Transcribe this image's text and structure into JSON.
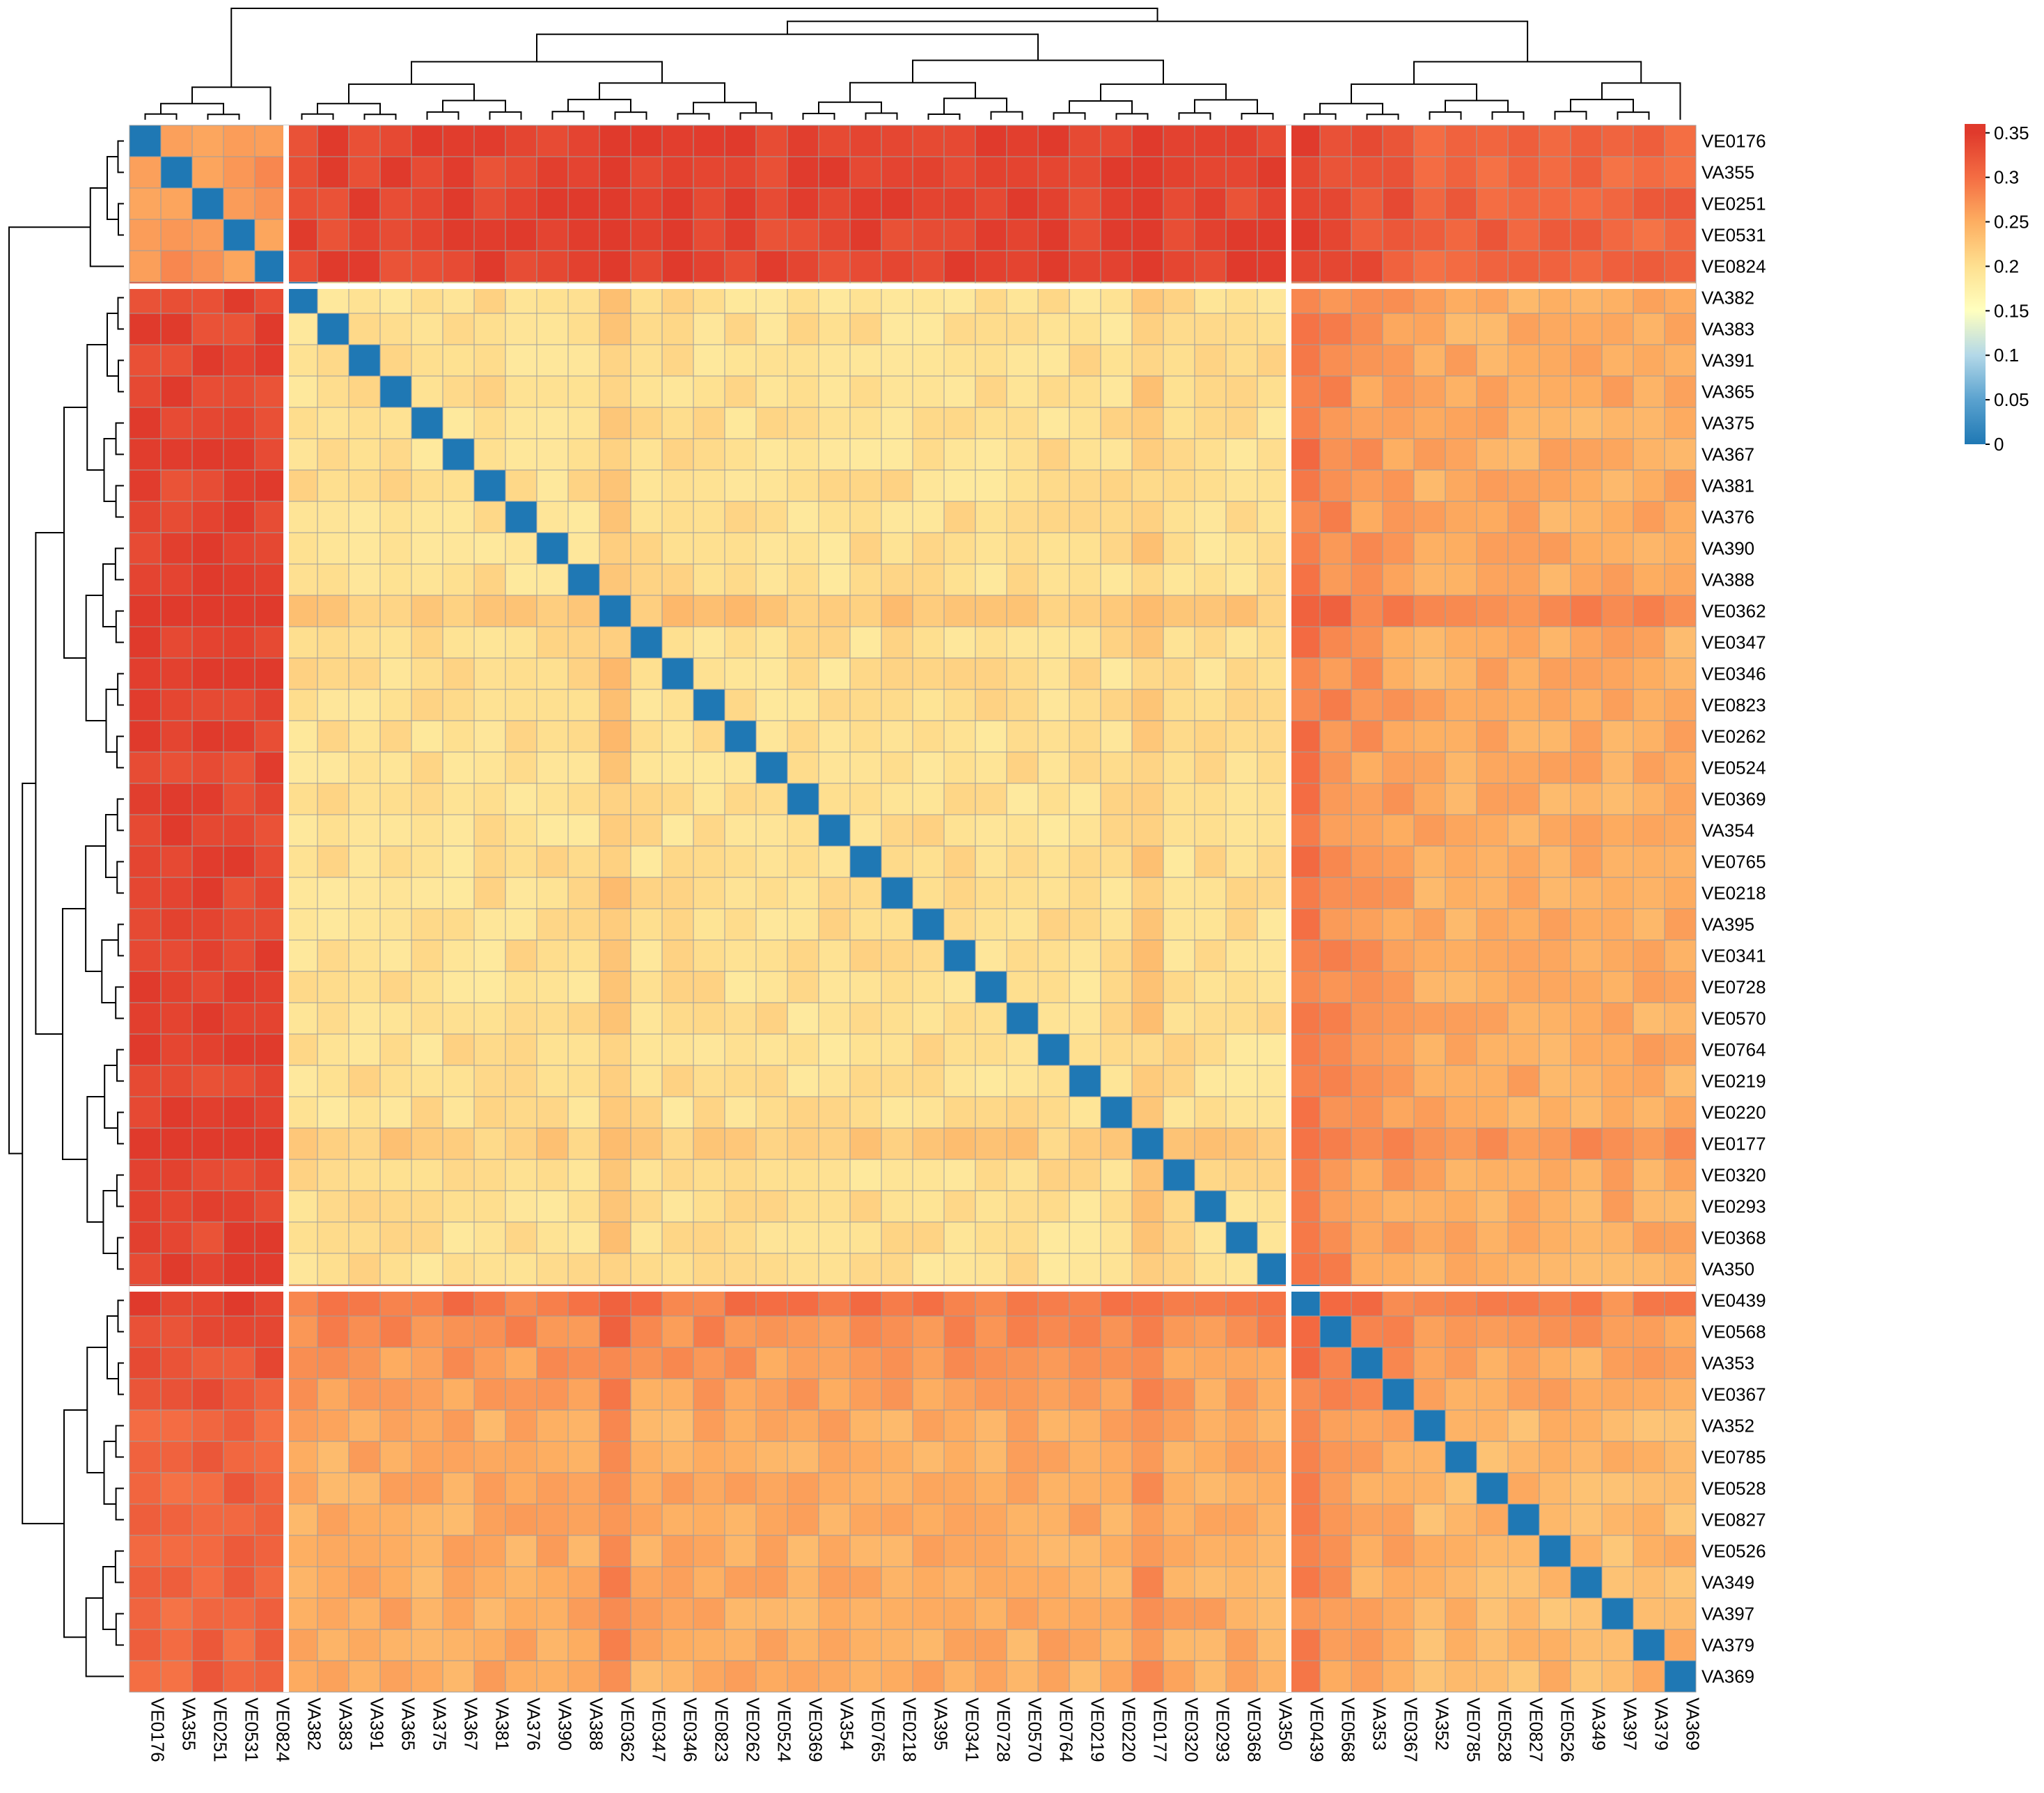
{
  "chart_data": {
    "type": "heatmap",
    "labels": [
      "VE0176",
      "VA355",
      "VE0251",
      "VE0531",
      "VE0824",
      "VA382",
      "VA383",
      "VA391",
      "VA365",
      "VA375",
      "VA367",
      "VA381",
      "VA376",
      "VA390",
      "VA388",
      "VE0362",
      "VE0347",
      "VE0346",
      "VE0823",
      "VE0262",
      "VE0524",
      "VE0369",
      "VA354",
      "VE0765",
      "VE0218",
      "VA395",
      "VE0341",
      "VE0728",
      "VE0570",
      "VE0764",
      "VE0219",
      "VE0220",
      "VE0177",
      "VE0320",
      "VE0293",
      "VE0368",
      "VA350",
      "VE0439",
      "VE0568",
      "VA353",
      "VE0367",
      "VA352",
      "VE0785",
      "VE0528",
      "VE0827",
      "VE0526",
      "VA349",
      "VA397",
      "VA379",
      "VA369"
    ],
    "clusters": [
      {
        "name": "",
        "start": 0,
        "end": 4,
        "within": 0.27
      },
      {
        "name": "",
        "start": 5,
        "end": 36,
        "within": 0.2
      },
      {
        "name": "",
        "start": 37,
        "end": 49,
        "within": 0.24
      }
    ],
    "between": {
      "0-1": 0.34,
      "0-2": 0.31,
      "1-2": 0.25
    },
    "row_shift": {
      "VE0362": 0.025,
      "VE0439": 0.04,
      "VE0568": 0.025,
      "VE0177": 0.02,
      "VA353": 0.015,
      "VE0367": 0.01
    },
    "color_scale": {
      "min": 0,
      "max": 0.36,
      "stops": [
        {
          "value": 0,
          "color": "#1f78b4"
        },
        {
          "value": 0.05,
          "color": "#5aa2cf"
        },
        {
          "value": 0.1,
          "color": "#b3d8e8"
        },
        {
          "value": 0.15,
          "color": "#ffffbf"
        },
        {
          "value": 0.2,
          "color": "#fee090"
        },
        {
          "value": 0.25,
          "color": "#fdae61"
        },
        {
          "value": 0.3,
          "color": "#f46d43"
        },
        {
          "value": 0.35,
          "color": "#e03a2c"
        }
      ]
    },
    "legend": {
      "placement": "top-right",
      "ticks": [
        {
          "value": 0.35,
          "label": "0.35"
        },
        {
          "value": 0.3,
          "label": "0.3"
        },
        {
          "value": 0.25,
          "label": "0.25"
        },
        {
          "value": 0.2,
          "label": "0.2"
        },
        {
          "value": 0.15,
          "label": "0.15"
        },
        {
          "value": 0.1,
          "label": "0.1"
        },
        {
          "value": 0.05,
          "label": "0.05"
        },
        {
          "value": 0,
          "label": "0"
        }
      ]
    },
    "title": "",
    "xlabel": "",
    "ylabel": "",
    "grid": true
  }
}
